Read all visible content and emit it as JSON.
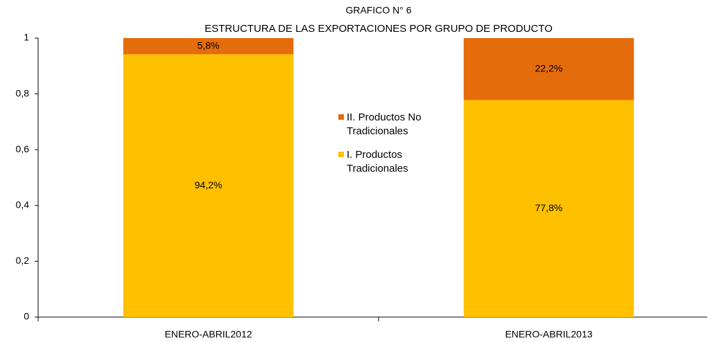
{
  "chart_data": {
    "type": "stacked_bar",
    "title": "GRAFICO N° 6",
    "subtitle": "ESTRUCTURA DE LAS EXPORTACIONES POR GRUPO DE PRODUCTO",
    "categories": [
      "ENERO-ABRIL2012",
      "ENERO-ABRIL2013"
    ],
    "series": [
      {
        "name": "I. Productos Tradicionales",
        "color": "#ffc000",
        "values": [
          0.942,
          0.778
        ],
        "value_labels": [
          "94,2%",
          "77,8%"
        ]
      },
      {
        "name": "II. Productos No Tradicionales",
        "color": "#e46c0a",
        "values": [
          0.058,
          0.222
        ],
        "value_labels": [
          "5,8%",
          "22,2%"
        ]
      }
    ],
    "ylim": [
      0,
      1
    ],
    "yticks": [
      0,
      {
        "value": 0.2,
        "label": "0,2"
      },
      {
        "value": 0.4,
        "label": "0,4"
      },
      {
        "value": 0.6,
        "label": "0,6"
      },
      {
        "value": 0.8,
        "label": "0,8"
      },
      1
    ],
    "grid": false,
    "legend": "center"
  }
}
